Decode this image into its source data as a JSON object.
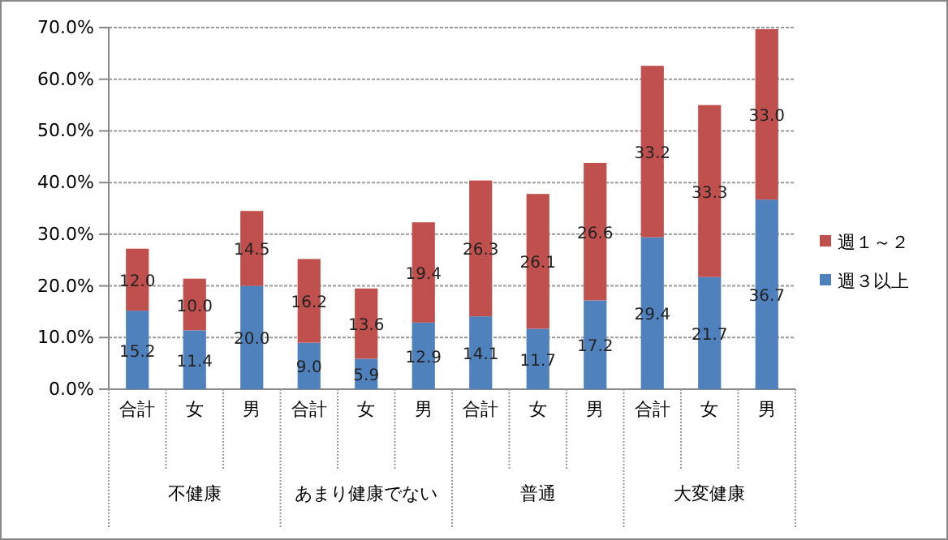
{
  "chart_data": {
    "type": "bar",
    "stacked": true,
    "categories": [
      "合計",
      "女",
      "男",
      "合計",
      "女",
      "男",
      "合計",
      "女",
      "男",
      "合計",
      "女",
      "男"
    ],
    "annotations": [
      "不健康",
      "あまり健康でない",
      "普通",
      "大変健康"
    ],
    "series": [
      {
        "name": "週３以上",
        "color": "#4f81bd",
        "values": [
          15.2,
          11.4,
          20.0,
          9.0,
          5.9,
          12.9,
          14.1,
          11.7,
          17.2,
          29.4,
          21.7,
          36.7
        ],
        "value_labels": [
          "15.2",
          "11.4",
          "20.0",
          "9.0",
          "5.9",
          "12.9",
          "14.1",
          "11.7",
          "17.2",
          "29.4",
          "21.7",
          "36.7"
        ]
      },
      {
        "name": "週１～２",
        "color": "#c0504d",
        "values": [
          12.0,
          10.0,
          14.5,
          16.2,
          13.6,
          19.4,
          26.3,
          26.1,
          26.6,
          33.2,
          33.3,
          33.0
        ],
        "value_labels": [
          "12.0",
          "10.0",
          "14.5",
          "16.2",
          "13.6",
          "19.4",
          "26.3",
          "26.1",
          "26.6",
          "33.2",
          "33.3",
          "33.0"
        ]
      }
    ],
    "ylim": [
      0,
      70
    ],
    "yticks": [
      {
        "value": 0,
        "label": "0.0%"
      },
      {
        "value": 10,
        "label": "10.0%"
      },
      {
        "value": 20,
        "label": "20.0%"
      },
      {
        "value": 30,
        "label": "30.0%"
      },
      {
        "value": 40,
        "label": "40.0%"
      },
      {
        "value": 50,
        "label": "50.0%"
      },
      {
        "value": 60,
        "label": "60.0%"
      },
      {
        "value": 70,
        "label": "70.0%"
      }
    ],
    "grid": "y",
    "legend": "right"
  }
}
